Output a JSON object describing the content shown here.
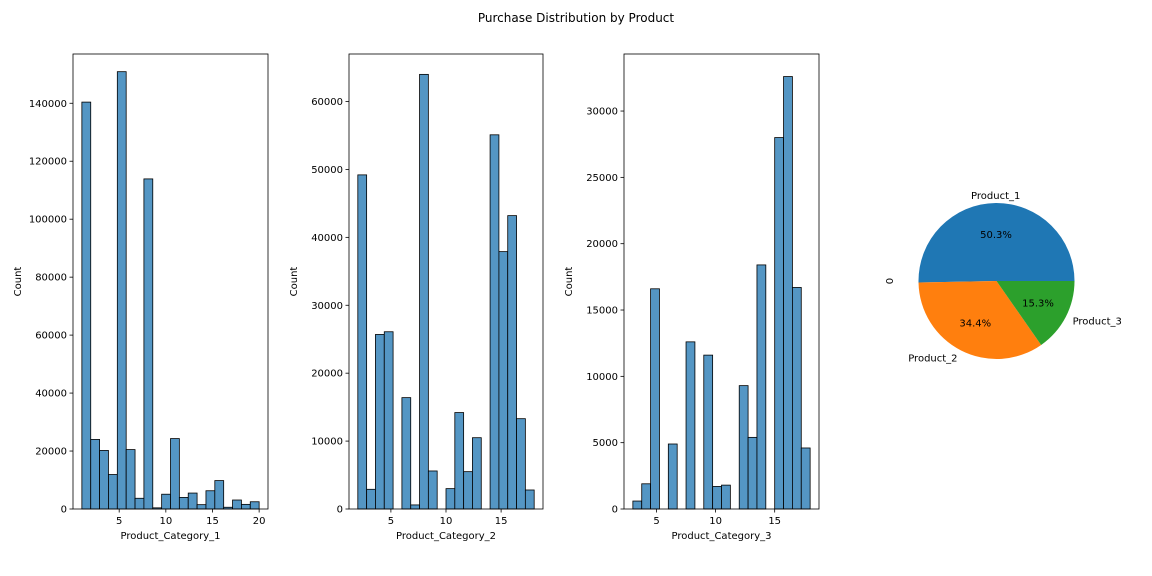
{
  "figure": {
    "title": "Purchase Distribution by Product"
  },
  "colors": {
    "hist_bar": "#5496c4",
    "pie": [
      "#1f77b4",
      "#ff7f0e",
      "#2ca02c"
    ]
  },
  "chart_data": [
    {
      "type": "bar",
      "subtype": "histogram",
      "xlabel": "Product_Category_1",
      "ylabel": "Count",
      "xlim": [
        0.05,
        20.95
      ],
      "ylim": [
        0,
        157000
      ],
      "xticks": [
        5,
        10,
        15,
        20
      ],
      "yticks": [
        0,
        20000,
        40000,
        60000,
        80000,
        100000,
        120000,
        140000
      ],
      "bin_start": 1,
      "bin_width": 0.95,
      "values": [
        140400,
        24000,
        20200,
        11900,
        150900,
        20500,
        3700,
        113900,
        400,
        5100,
        24300,
        4000,
        5500,
        1500,
        6300,
        9800,
        600,
        3100,
        1600,
        2500
      ]
    },
    {
      "type": "bar",
      "subtype": "histogram",
      "xlabel": "Product_Category_2",
      "ylabel": "Count",
      "xlim": [
        1.2,
        18.8
      ],
      "ylim": [
        0,
        67000
      ],
      "xticks": [
        5,
        10,
        15
      ],
      "yticks": [
        0,
        10000,
        20000,
        30000,
        40000,
        50000,
        60000
      ],
      "bin_start": 2,
      "bin_width": 0.8,
      "values": [
        49200,
        2900,
        25700,
        26100,
        0,
        16400,
        600,
        64000,
        5600,
        0,
        3000,
        14200,
        5500,
        10500,
        0,
        55100,
        37900,
        43200,
        13300,
        2800
      ]
    },
    {
      "type": "bar",
      "subtype": "histogram",
      "xlabel": "Product_Category_3",
      "ylabel": "Count",
      "xlim": [
        2.25,
        18.75
      ],
      "ylim": [
        0,
        34300
      ],
      "xticks": [
        5,
        10,
        15
      ],
      "yticks": [
        0,
        5000,
        10000,
        15000,
        20000,
        25000,
        30000
      ],
      "bin_start": 3,
      "bin_width": 0.75,
      "values": [
        600,
        1900,
        16600,
        0,
        4900,
        0,
        12600,
        0,
        11600,
        1700,
        1800,
        0,
        9300,
        5400,
        18400,
        0,
        28000,
        32600,
        16700,
        4600
      ]
    },
    {
      "type": "pie",
      "ylabel": "0",
      "labels": [
        "Product_1",
        "Product_2",
        "Product_3"
      ],
      "values": [
        50.3,
        34.4,
        15.3
      ],
      "autopct": [
        "50.3%",
        "34.4%",
        "15.3%"
      ]
    }
  ]
}
